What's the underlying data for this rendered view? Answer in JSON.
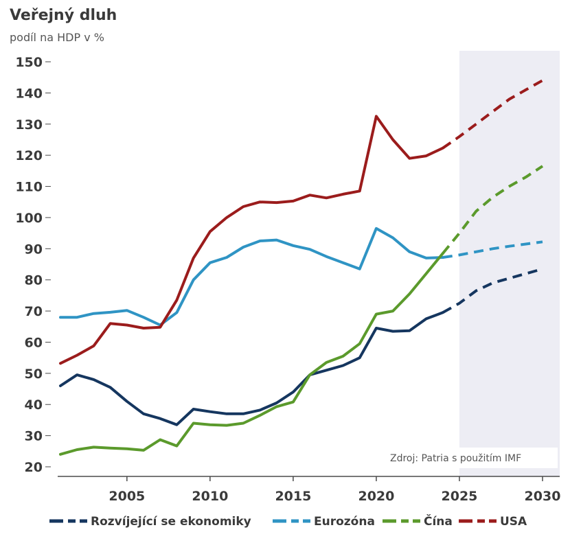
{
  "header": {
    "title": "Veřejný dluh",
    "subtitle": "podíl na HDP v %"
  },
  "source": "Zdroj: Patria s použitím IMF",
  "colors": {
    "forecast_band": "#ededf4",
    "axis": "#4a4a4a"
  },
  "chart_data": {
    "type": "line",
    "title": "Veřejný dluh",
    "subtitle": "podíl na HDP v %",
    "xlabel": "",
    "ylabel": "",
    "xlim": [
      2001,
      2030.5
    ],
    "ylim": [
      20,
      150
    ],
    "x_ticks": [
      2005,
      2010,
      2015,
      2020,
      2025,
      2030
    ],
    "y_ticks": [
      20,
      30,
      40,
      50,
      60,
      70,
      80,
      90,
      100,
      110,
      120,
      130,
      140,
      150
    ],
    "forecast_region": [
      2025,
      2030.5
    ],
    "grid": false,
    "legend_position": "bottom",
    "series": [
      {
        "name": "Rozvíjející se ekonomiky",
        "color": "#15365f",
        "values": [
          [
            2001,
            46
          ],
          [
            2002,
            49.5
          ],
          [
            2003,
            48
          ],
          [
            2004,
            45.5
          ],
          [
            2005,
            41
          ],
          [
            2006,
            37
          ],
          [
            2007,
            35.5
          ],
          [
            2008,
            33.5
          ],
          [
            2009,
            38.5
          ],
          [
            2010,
            37.7
          ],
          [
            2011,
            37
          ],
          [
            2012,
            37
          ],
          [
            2013,
            38.2
          ],
          [
            2014,
            40.5
          ],
          [
            2015,
            44
          ],
          [
            2016,
            49.5
          ],
          [
            2017,
            51
          ],
          [
            2018,
            52.5
          ],
          [
            2019,
            55
          ],
          [
            2020,
            64.5
          ],
          [
            2021,
            63.5
          ],
          [
            2022,
            63.7
          ],
          [
            2023,
            67.5
          ],
          [
            2024,
            69.5
          ],
          [
            2025,
            72.5
          ],
          [
            2026,
            76.5
          ],
          [
            2027,
            79
          ],
          [
            2028,
            80.5
          ],
          [
            2029,
            82
          ],
          [
            2030,
            83.5
          ]
        ],
        "forecast_from": 2024
      },
      {
        "name": "Eurozóna",
        "color": "#2f94c4",
        "values": [
          [
            2001,
            68
          ],
          [
            2002,
            68
          ],
          [
            2003,
            69.2
          ],
          [
            2004,
            69.6
          ],
          [
            2005,
            70.2
          ],
          [
            2006,
            68
          ],
          [
            2007,
            65.5
          ],
          [
            2008,
            69.5
          ],
          [
            2009,
            80
          ],
          [
            2010,
            85.5
          ],
          [
            2011,
            87.2
          ],
          [
            2012,
            90.5
          ],
          [
            2013,
            92.5
          ],
          [
            2014,
            92.8
          ],
          [
            2015,
            91
          ],
          [
            2016,
            89.8
          ],
          [
            2017,
            87.5
          ],
          [
            2018,
            85.5
          ],
          [
            2019,
            83.5
          ],
          [
            2020,
            96.5
          ],
          [
            2021,
            93.5
          ],
          [
            2022,
            89
          ],
          [
            2023,
            87
          ],
          [
            2024,
            87.2
          ],
          [
            2025,
            88
          ],
          [
            2026,
            89
          ],
          [
            2027,
            90
          ],
          [
            2028,
            90.8
          ],
          [
            2029,
            91.5
          ],
          [
            2030,
            92.2
          ]
        ],
        "forecast_from": 2024
      },
      {
        "name": "Čína",
        "color": "#5b9a2c",
        "values": [
          [
            2001,
            24
          ],
          [
            2002,
            25.5
          ],
          [
            2003,
            26.3
          ],
          [
            2004,
            26
          ],
          [
            2005,
            25.8
          ],
          [
            2006,
            25.3
          ],
          [
            2007,
            28.7
          ],
          [
            2008,
            26.7
          ],
          [
            2009,
            34
          ],
          [
            2010,
            33.5
          ],
          [
            2011,
            33.3
          ],
          [
            2012,
            34
          ],
          [
            2013,
            36.5
          ],
          [
            2014,
            39.3
          ],
          [
            2015,
            40.8
          ],
          [
            2016,
            49.5
          ],
          [
            2017,
            53.5
          ],
          [
            2018,
            55.5
          ],
          [
            2019,
            59.5
          ],
          [
            2020,
            69
          ],
          [
            2021,
            70
          ],
          [
            2022,
            75.5
          ],
          [
            2023,
            82
          ],
          [
            2024,
            88.5
          ],
          [
            2025,
            95
          ],
          [
            2026,
            102
          ],
          [
            2027,
            106.5
          ],
          [
            2028,
            110
          ],
          [
            2029,
            113
          ],
          [
            2030,
            116.5
          ]
        ],
        "forecast_from": 2024
      },
      {
        "name": "USA",
        "color": "#9b1c1c",
        "values": [
          [
            2001,
            53.2
          ],
          [
            2002,
            55.8
          ],
          [
            2003,
            58.8
          ],
          [
            2004,
            66
          ],
          [
            2005,
            65.5
          ],
          [
            2006,
            64.5
          ],
          [
            2007,
            64.8
          ],
          [
            2008,
            73.5
          ],
          [
            2009,
            87
          ],
          [
            2010,
            95.5
          ],
          [
            2011,
            100
          ],
          [
            2012,
            103.5
          ],
          [
            2013,
            105
          ],
          [
            2014,
            104.8
          ],
          [
            2015,
            105.3
          ],
          [
            2016,
            107.2
          ],
          [
            2017,
            106.3
          ],
          [
            2018,
            107.5
          ],
          [
            2019,
            108.5
          ],
          [
            2020,
            132.5
          ],
          [
            2021,
            125
          ],
          [
            2022,
            119
          ],
          [
            2023,
            119.8
          ],
          [
            2024,
            122.3
          ],
          [
            2025,
            126
          ],
          [
            2026,
            130
          ],
          [
            2027,
            134
          ],
          [
            2028,
            138
          ],
          [
            2029,
            141
          ],
          [
            2030,
            144
          ]
        ],
        "forecast_from": 2024
      }
    ]
  }
}
